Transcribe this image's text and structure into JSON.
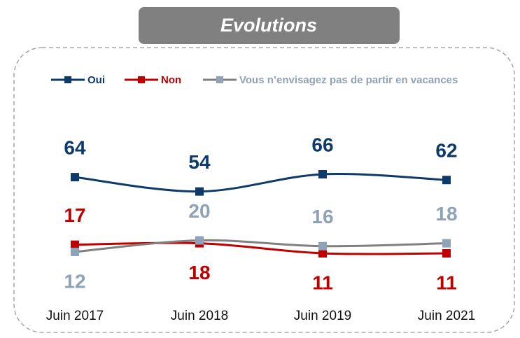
{
  "chart_data": {
    "type": "line",
    "title": "Evolutions",
    "categories": [
      "Juin 2017",
      "Juin 2018",
      "Juin 2019",
      "Juin 2021"
    ],
    "series": [
      {
        "name": "Oui",
        "color": "#0d3a6a",
        "values": [
          64,
          54,
          66,
          62
        ]
      },
      {
        "name": "Non",
        "color": "#c00000",
        "values": [
          17,
          18,
          11,
          11
        ]
      },
      {
        "name": "Vous n’envisagez pas de partir en vacances",
        "color": "#8ea2b8",
        "values": [
          12,
          20,
          16,
          18
        ]
      }
    ]
  }
}
